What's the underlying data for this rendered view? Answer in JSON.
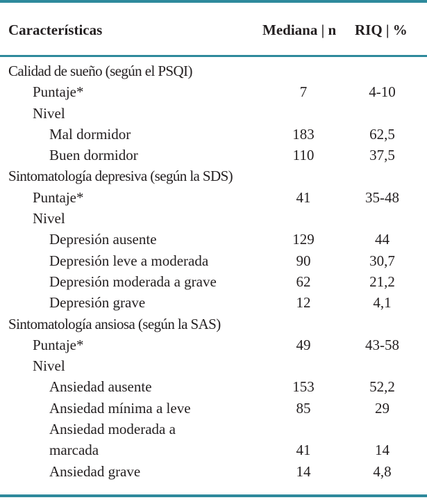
{
  "header": {
    "characteristics": "Características",
    "median_n": "Mediana | n",
    "riq_pct": "RIQ | %"
  },
  "rows": [
    {
      "label": "Calidad de sueño (según el PSQI)",
      "level": 0,
      "median_n": "",
      "riq_pct": ""
    },
    {
      "label": "Puntaje*",
      "level": 1,
      "median_n": "7",
      "riq_pct": "4-10"
    },
    {
      "label": "Nivel",
      "level": 1,
      "median_n": "",
      "riq_pct": ""
    },
    {
      "label": "Mal dormidor",
      "level": 2,
      "median_n": "183",
      "riq_pct": "62,5"
    },
    {
      "label": "Buen dormidor",
      "level": 2,
      "median_n": "110",
      "riq_pct": "37,5"
    },
    {
      "label": "Sintomatología depresiva (según la SDS)",
      "level": 0,
      "median_n": "",
      "riq_pct": ""
    },
    {
      "label": "Puntaje*",
      "level": 1,
      "median_n": "41",
      "riq_pct": "35-48"
    },
    {
      "label": "Nivel",
      "level": 1,
      "median_n": "",
      "riq_pct": ""
    },
    {
      "label": "Depresión ausente",
      "level": 2,
      "median_n": "129",
      "riq_pct": "44"
    },
    {
      "label": "Depresión leve a moderada",
      "level": 2,
      "median_n": "90",
      "riq_pct": "30,7"
    },
    {
      "label": "Depresión moderada a grave",
      "level": 2,
      "median_n": "62",
      "riq_pct": "21,2"
    },
    {
      "label": "Depresión grave",
      "level": 2,
      "median_n": "12",
      "riq_pct": "4,1"
    },
    {
      "label": "Sintomatología ansiosa (según la SAS)",
      "level": 0,
      "median_n": "",
      "riq_pct": ""
    },
    {
      "label": "Puntaje*",
      "level": 1,
      "median_n": "49",
      "riq_pct": "43-58"
    },
    {
      "label": "Nivel",
      "level": 1,
      "median_n": "",
      "riq_pct": ""
    },
    {
      "label": "Ansiedad ausente",
      "level": 2,
      "median_n": "153",
      "riq_pct": "52,2"
    },
    {
      "label": "Ansiedad mínima a leve",
      "level": 2,
      "median_n": "85",
      "riq_pct": "29"
    },
    {
      "label": "Ansiedad moderada a",
      "level": 2,
      "median_n": "",
      "riq_pct": ""
    },
    {
      "label": "marcada",
      "level": 2,
      "median_n": "41",
      "riq_pct": "14"
    },
    {
      "label": "Ansiedad grave",
      "level": 2,
      "median_n": "14",
      "riq_pct": "4,8"
    }
  ]
}
